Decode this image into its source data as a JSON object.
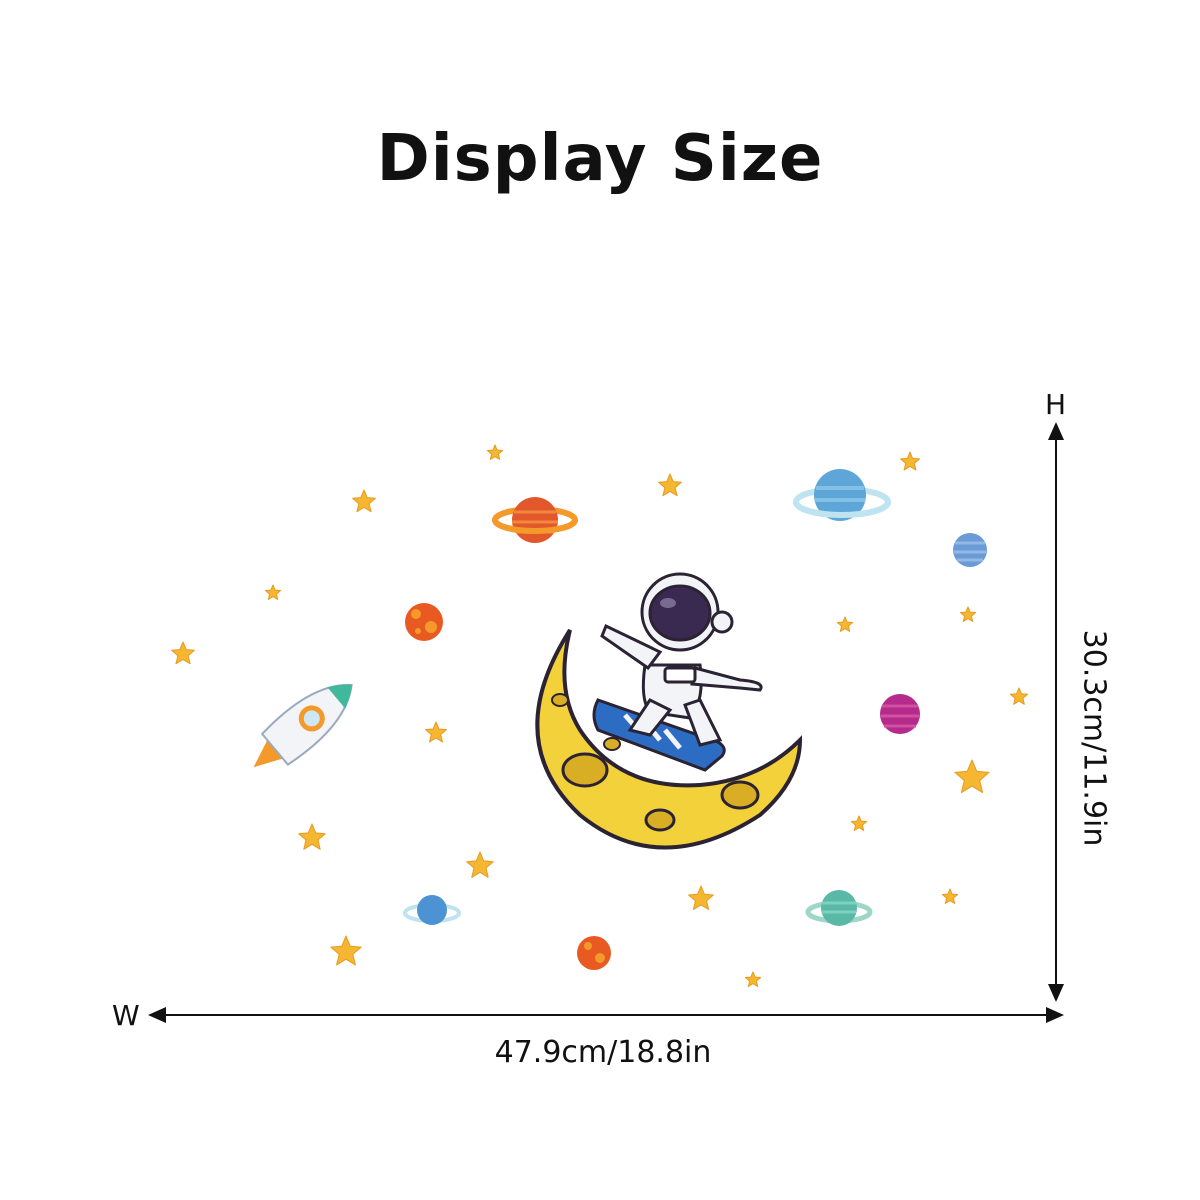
{
  "title": "Display Size",
  "dimensions": {
    "height_axis_label": "H",
    "width_axis_label": "W",
    "width": "47.9cm/18.8in",
    "height": "30.3cm/11.9in"
  },
  "illustration": {
    "subject": "astronaut skateboarding on crescent moon with rocket, planets and stars",
    "colors": {
      "star": "#F5B731",
      "moon": "#F2D13A",
      "outline": "#2B2233"
    }
  }
}
